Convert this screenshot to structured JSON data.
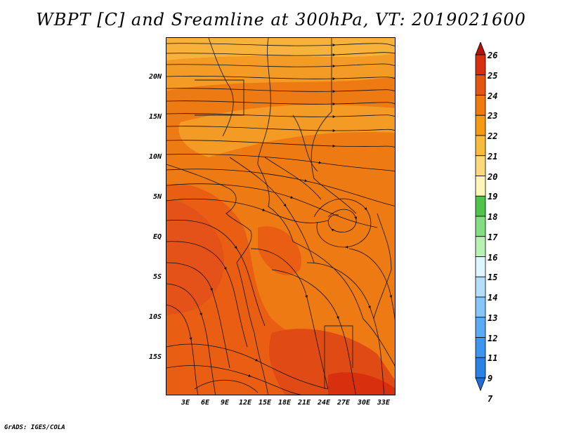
{
  "title": "WBPT [C] and Sreamline at 300hPa, VT: 2019021600",
  "lat_labels": [
    "20N",
    "15N",
    "10N",
    "5N",
    "EQ",
    "5S",
    "10S",
    "15S"
  ],
  "lon_labels": [
    "3E",
    "6E",
    "9E",
    "12E",
    "15E",
    "18E",
    "21E",
    "24E",
    "27E",
    "30E",
    "33E"
  ],
  "colorbar": {
    "labels": [
      "7",
      "9",
      "11",
      "12",
      "13",
      "14",
      "15",
      "16",
      "17",
      "18",
      "19",
      "20",
      "21",
      "22",
      "23",
      "24",
      "25",
      "26"
    ],
    "colors": [
      "#1e6fd9",
      "#2a82e6",
      "#3c96f0",
      "#5aabf5",
      "#86c6fa",
      "#b4defc",
      "#e0f6ff",
      "#b9f0b4",
      "#84dd80",
      "#4cc54a",
      "#fff5b8",
      "#fbd97a",
      "#f8bb3c",
      "#f59a11",
      "#f07a0c",
      "#e4560f",
      "#d8300e",
      "#b5120c"
    ]
  },
  "footer": "GrADS: IGES/COLA"
}
